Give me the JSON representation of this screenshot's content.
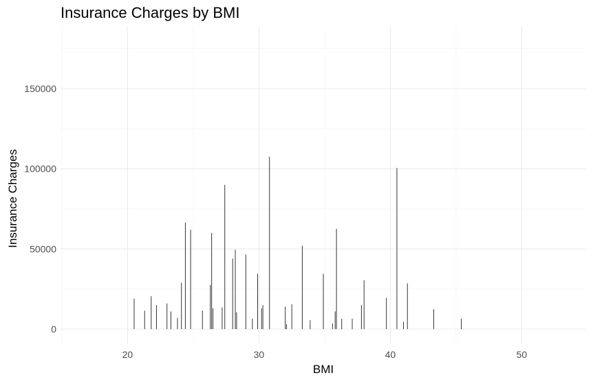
{
  "chart_data": {
    "type": "bar",
    "title": "Insurance Charges by BMI",
    "xlabel": "BMI",
    "ylabel": "Insurance Charges",
    "xlim": [
      14.9,
      54.9
    ],
    "ylim": [
      -9000,
      189000
    ],
    "x_ticks": [
      20,
      30,
      40,
      50
    ],
    "y_ticks": [
      0,
      50000,
      100000,
      150000
    ],
    "grid": true,
    "x": [
      20.5,
      21.3,
      21.8,
      22.2,
      23.0,
      23.3,
      23.8,
      24.1,
      24.4,
      24.8,
      25.7,
      26.3,
      26.4,
      26.5,
      27.2,
      27.4,
      28.0,
      28.2,
      28.3,
      29.0,
      29.5,
      29.9,
      30.2,
      30.3,
      30.8,
      32.0,
      32.1,
      32.5,
      33.3,
      33.9,
      34.9,
      35.6,
      35.8,
      35.9,
      36.3,
      37.1,
      37.8,
      38.0,
      39.7,
      40.5,
      41.0,
      41.3,
      43.3,
      45.4
    ],
    "values": [
      19000,
      11500,
      20500,
      15000,
      16000,
      11000,
      7000,
      29000,
      66500,
      62000,
      11500,
      27500,
      60000,
      13000,
      13500,
      90000,
      44000,
      49500,
      10500,
      46500,
      6500,
      34500,
      13000,
      15000,
      107500,
      14000,
      3000,
      15500,
      52000,
      5500,
      34500,
      3500,
      11000,
      62500,
      6500,
      6500,
      15000,
      30500,
      19500,
      100500,
      4500,
      28500,
      12500,
      6500
    ]
  }
}
